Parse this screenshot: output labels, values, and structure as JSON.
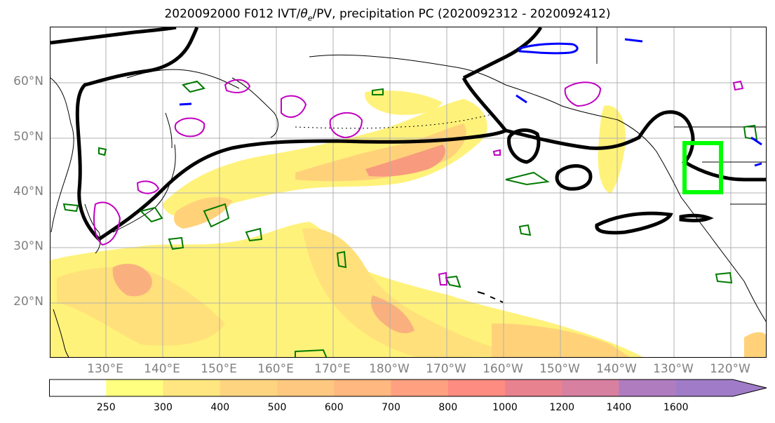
{
  "title_pre": "2020092000 F012 IVT/",
  "title_theta": "θ",
  "title_sub": "e",
  "title_post": "/PV, precipitation PC (2020092312 - 2020092412)",
  "lat_labels": [
    "60°N",
    "50°N",
    "40°N",
    "30°N",
    "20°N"
  ],
  "lon_labels": [
    "130°E",
    "140°E",
    "150°E",
    "160°E",
    "170°E",
    "180°W",
    "170°W",
    "160°W",
    "150°W",
    "140°W",
    "130°W",
    "120°W"
  ],
  "colorbar": {
    "levels": [
      "250",
      "300",
      "400",
      "500",
      "600",
      "700",
      "800",
      "1000",
      "1200",
      "1400",
      "1600"
    ],
    "colors": [
      "#ffffff",
      "#ffff80",
      "#ffe680",
      "#ffd480",
      "#ffc880",
      "#ffb880",
      "#ffa080",
      "#ff8c80",
      "#e9828f",
      "#d880a0",
      "#b07cc0",
      "#a07cc8"
    ],
    "extend": "max"
  },
  "colors": {
    "ivt_fill_low": "#fff27a",
    "ivt_fill_mid": "#ffd27a",
    "ivt_fill_high": "#f89a7e",
    "theta_e_contour": "#000000",
    "pv_contour_green": "#007a00",
    "pv_contour_magenta": "#c000c0",
    "pv_contour_blue": "#0000ff",
    "target_box": "#00ff00",
    "coastline": "#000000",
    "grid": "#b0b0b0",
    "axis_labels": "#808080"
  },
  "map": {
    "projection": "PlateCarree",
    "extent_lon": [
      120,
      245
    ],
    "extent_lat": [
      10,
      70
    ],
    "grid": true,
    "target_box_lon": [
      235,
      242
    ],
    "target_box_lat": [
      40,
      49
    ]
  }
}
